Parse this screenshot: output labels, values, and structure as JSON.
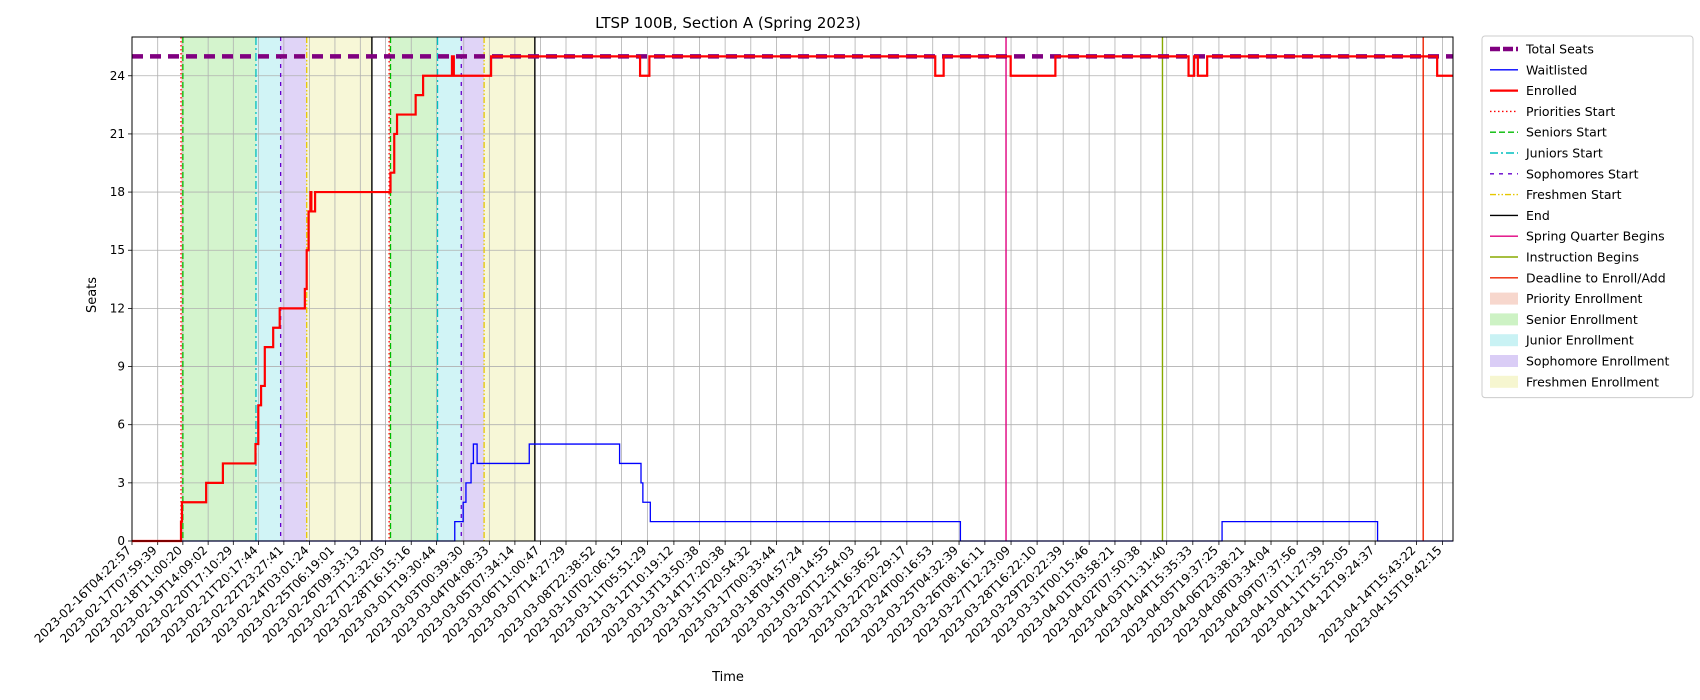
{
  "chart_data": {
    "type": "line",
    "title": "LTSP 100B, Section A (Spring 2023)",
    "xlabel": "Time",
    "ylabel": "Seats",
    "ylim": [
      0,
      26
    ],
    "y_ticks": [
      0,
      3,
      6,
      9,
      12,
      15,
      18,
      21,
      24
    ],
    "x_range": [
      "2023-02-16T04:22:57",
      "2023-04-16T07:00:00"
    ],
    "x_tick_labels": [
      "2023-02-16T04:22:57",
      "2023-02-17T07:59:39",
      "2023-02-18T11:00:20",
      "2023-02-19T14:09:02",
      "2023-02-20T17:10:29",
      "2023-02-21T20:17:44",
      "2023-02-22T23:27:41",
      "2023-02-24T03:01:24",
      "2023-02-25T06:19:01",
      "2023-02-26T09:33:13",
      "2023-02-27T12:32:05",
      "2023-02-28T16:15:16",
      "2023-03-01T19:30:44",
      "2023-03-03T00:39:30",
      "2023-03-04T04:08:33",
      "2023-03-05T07:34:14",
      "2023-03-06T11:00:47",
      "2023-03-07T14:27:29",
      "2023-03-08T22:38:52",
      "2023-03-10T02:06:15",
      "2023-03-11T05:51:29",
      "2023-03-12T10:19:12",
      "2023-03-13T13:50:38",
      "2023-03-14T17:20:38",
      "2023-03-15T20:54:32",
      "2023-03-17T00:33:44",
      "2023-03-18T04:57:24",
      "2023-03-19T09:14:55",
      "2023-03-20T12:54:03",
      "2023-03-21T16:36:52",
      "2023-03-22T20:29:17",
      "2023-03-24T00:16:53",
      "2023-03-25T04:32:39",
      "2023-03-26T08:16:11",
      "2023-03-27T12:23:09",
      "2023-03-28T16:22:10",
      "2023-03-29T20:22:39",
      "2023-03-31T00:15:46",
      "2023-04-01T03:58:21",
      "2023-04-02T07:50:38",
      "2023-04-03T11:31:40",
      "2023-04-04T15:35:33",
      "2023-04-05T19:37:25",
      "2023-04-06T23:38:21",
      "2023-04-08T03:34:04",
      "2023-04-09T07:37:56",
      "2023-04-10T11:27:39",
      "2023-04-11T15:25:05",
      "2023-04-12T19:24:37",
      "2023-04-14T15:43:22",
      "2023-04-15T19:42:15"
    ],
    "series": [
      {
        "name": "Total Seats",
        "color": "#800080",
        "style": "dashed-thick",
        "x": [
          "2023-02-16T04:22:57",
          "2023-04-16T07:00:00"
        ],
        "y": [
          25,
          25
        ]
      },
      {
        "name": "Waitlisted",
        "color": "#0000ff",
        "style": "step",
        "x": [
          "2023-02-16T04:22:57",
          "2023-03-02T15:00:00",
          "2023-03-03T00:00:00",
          "2023-03-03T03:00:00",
          "2023-03-03T07:00:00",
          "2023-03-03T08:30:00",
          "2023-03-03T11:00:00",
          "2023-03-03T15:00:00",
          "2023-03-03T19:00:00",
          "2023-03-05T23:00:00",
          "2023-03-10T00:00:00",
          "2023-03-10T23:00:00",
          "2023-03-11T01:00:00",
          "2023-03-11T09:00:00",
          "2023-03-25T06:00:00",
          "2023-04-05T23:00:00",
          "2023-04-12T22:00:00",
          "2023-04-16T07:00:00"
        ],
        "y": [
          0,
          1,
          2,
          3,
          3,
          4,
          5,
          4,
          4,
          5,
          4,
          3,
          2,
          1,
          0,
          1,
          0,
          0
        ]
      },
      {
        "name": "Enrolled",
        "color": "#ff0000",
        "style": "step-thick",
        "x": [
          "2023-02-16T04:22:57",
          "2023-02-18T09:00:00",
          "2023-02-18T10:00:00",
          "2023-02-19T12:00:00",
          "2023-02-20T06:00:00",
          "2023-02-21T17:00:00",
          "2023-02-21T20:00:00",
          "2023-02-21T23:00:00",
          "2023-02-22T03:00:00",
          "2023-02-22T12:00:00",
          "2023-02-22T14:00:00",
          "2023-02-22T19:00:00",
          "2023-02-23T22:00:00",
          "2023-02-24T00:00:00",
          "2023-02-24T02:00:00",
          "2023-02-24T04:00:00",
          "2023-02-24T05:00:00",
          "2023-02-24T09:00:00",
          "2023-02-25T00:00:00",
          "2023-02-25T02:00:00",
          "2023-02-27T18:00:00",
          "2023-02-27T22:00:00",
          "2023-02-28T01:00:00",
          "2023-02-28T21:00:00",
          "2023-03-01T05:00:00",
          "2023-03-02T12:00:00",
          "2023-03-02T14:00:00",
          "2023-03-03T01:00:00",
          "2023-03-04T06:00:00",
          "2023-03-10T22:00:00",
          "2023-03-11T08:00:00",
          "2023-03-24T03:00:00",
          "2023-03-24T12:00:00",
          "2023-03-27T12:00:00",
          "2023-03-29T12:00:00",
          "2023-04-04T11:00:00",
          "2023-04-04T17:00:00",
          "2023-04-04T21:00:00",
          "2023-04-05T07:00:00",
          "2023-04-15T14:00:00"
        ],
        "y": [
          0,
          1,
          2,
          3,
          4,
          5,
          7,
          8,
          10,
          11,
          11,
          12,
          13,
          15,
          17,
          18,
          17,
          18,
          18,
          18,
          19,
          21,
          22,
          23,
          24,
          25,
          24,
          24,
          25,
          24,
          25,
          24,
          25,
          24,
          25,
          24,
          25,
          24,
          25,
          24
        ]
      }
    ],
    "events": [
      {
        "name": "Priorities Start",
        "color": "#ff0000",
        "style": "dotted",
        "x": [
          "2023-02-18T09:00:00",
          "2023-02-27T16:30:00"
        ]
      },
      {
        "name": "Seniors Start",
        "color": "#00bb00",
        "style": "dashed",
        "x": [
          "2023-02-18T11:00:00",
          "2023-02-27T18:00:00"
        ]
      },
      {
        "name": "Juniors Start",
        "color": "#00bfbf",
        "style": "dashdot",
        "x": [
          "2023-02-21T17:30:00",
          "2023-03-01T20:30:00"
        ]
      },
      {
        "name": "Sophomores Start",
        "color": "#6600cc",
        "style": "densedash",
        "x": [
          "2023-02-22T20:00:00",
          "2023-03-02T22:00:00"
        ]
      },
      {
        "name": "Freshmen Start",
        "color": "#e6c700",
        "style": "dashdotdot",
        "x": [
          "2023-02-24T00:00:00",
          "2023-03-03T22:30:00"
        ]
      },
      {
        "name": "End",
        "color": "#000000",
        "style": "solid",
        "x": [
          "2023-02-26T22:00:00",
          "2023-03-06T05:00:00"
        ]
      },
      {
        "name": "Spring Quarter Begins",
        "color": "#e0007f",
        "style": "solid",
        "x": [
          "2023-03-27T07:00:00"
        ]
      },
      {
        "name": "Instruction Begins",
        "color": "#88aa00",
        "style": "solid",
        "x": [
          "2023-04-03T07:00:00"
        ]
      },
      {
        "name": "Deadline to Enroll/Add",
        "color": "#ee2200",
        "style": "solid",
        "x": [
          "2023-04-14T23:00:00"
        ]
      }
    ],
    "periods": [
      {
        "name": "Priority Enrollment",
        "color": "#f4c6b8",
        "ranges": [
          [
            "2023-02-18T09:00:00",
            "2023-02-18T11:00:00"
          ],
          [
            "2023-02-27T16:30:00",
            "2023-02-27T18:00:00"
          ]
        ]
      },
      {
        "name": "Senior Enrollment",
        "color": "#b8ecab",
        "ranges": [
          [
            "2023-02-18T11:00:00",
            "2023-02-21T17:30:00"
          ],
          [
            "2023-02-27T18:00:00",
            "2023-03-01T20:30:00"
          ]
        ]
      },
      {
        "name": "Junior Enrollment",
        "color": "#b2ecf0",
        "ranges": [
          [
            "2023-02-21T17:30:00",
            "2023-02-22T20:00:00"
          ],
          [
            "2023-03-01T20:30:00",
            "2023-03-02T22:00:00"
          ]
        ]
      },
      {
        "name": "Sophomore Enrollment",
        "color": "#cbb8f2",
        "ranges": [
          [
            "2023-02-22T20:00:00",
            "2023-02-24T00:00:00"
          ],
          [
            "2023-03-02T22:00:00",
            "2023-03-03T22:30:00"
          ]
        ]
      },
      {
        "name": "Freshmen Enrollment",
        "color": "#f2f2bc",
        "ranges": [
          [
            "2023-02-24T00:00:00",
            "2023-02-26T22:00:00"
          ],
          [
            "2023-03-03T22:30:00",
            "2023-03-06T05:00:00"
          ]
        ]
      }
    ],
    "grid": true,
    "legend_position": "outside-right"
  }
}
